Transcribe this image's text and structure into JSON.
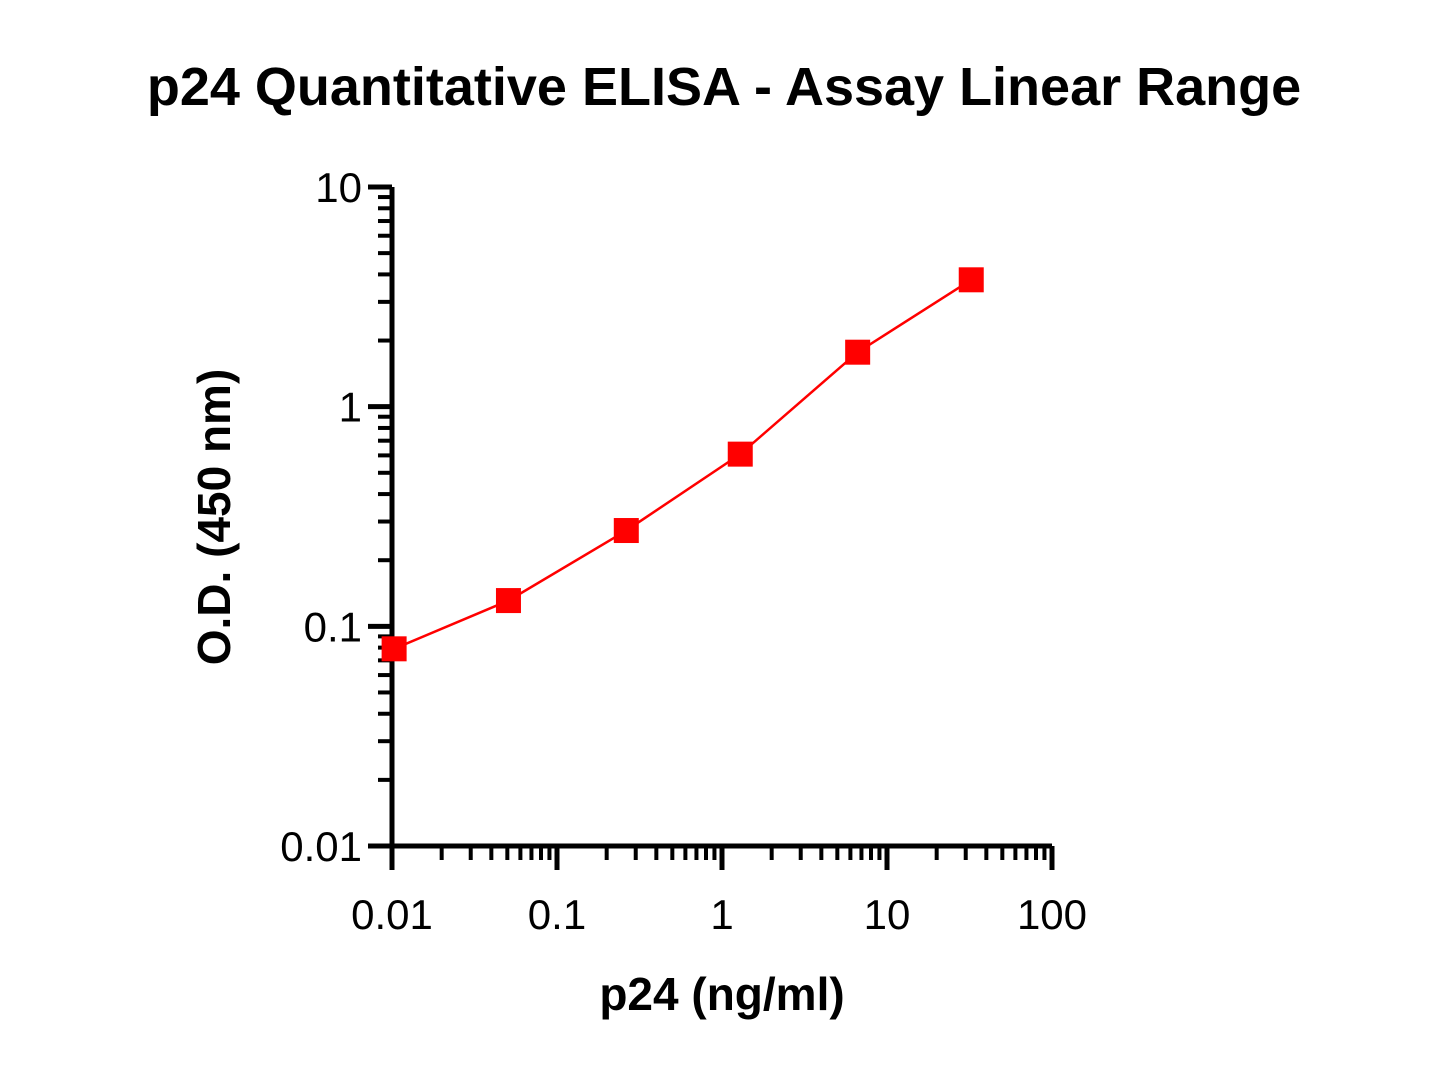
{
  "chart_data": {
    "type": "line",
    "title": "p24 Quantitative ELISA - Assay Linear Range",
    "xlabel": "p24 (ng/ml)",
    "ylabel": "O.D. (450 nm)",
    "x_scale": "log",
    "y_scale": "log",
    "xlim": [
      0.01,
      100
    ],
    "ylim": [
      0.01,
      10
    ],
    "x_ticks": [
      0.01,
      0.1,
      1,
      10,
      100
    ],
    "x_tick_labels": [
      "0.01",
      "0.1",
      "1",
      "10",
      "100"
    ],
    "y_ticks": [
      0.01,
      0.1,
      1,
      10
    ],
    "y_tick_labels": [
      "0.01",
      "0.1",
      "1",
      "10"
    ],
    "grid": false,
    "series": [
      {
        "color": "#ff0000",
        "marker": "square",
        "x": [
          0.0103,
          0.0508,
          0.263,
          1.29,
          6.64,
          32.4
        ],
        "y": [
          0.079,
          0.131,
          0.273,
          0.608,
          1.77,
          3.78
        ]
      }
    ]
  }
}
